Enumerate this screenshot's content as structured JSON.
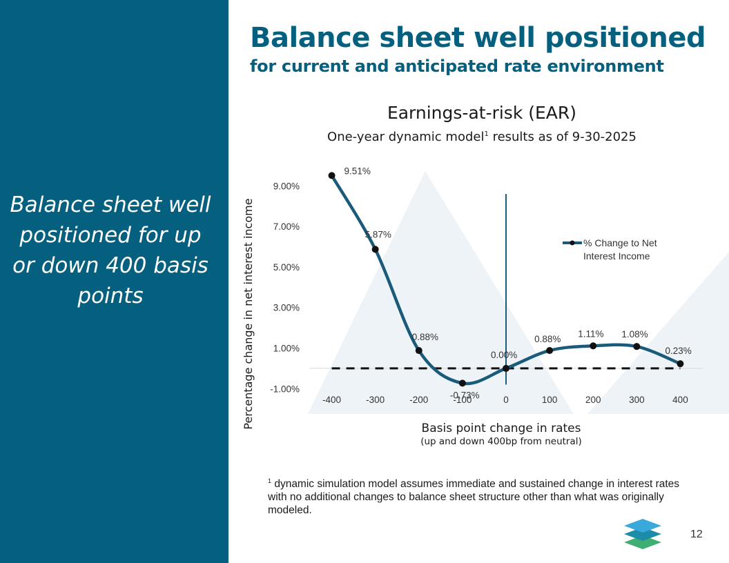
{
  "slide": {
    "title": "Balance sheet well positioned",
    "subtitle": "for current and anticipated rate environment",
    "sidebar_text": "Balance sheet well positioned for up or down 400 basis points",
    "footnote_marker": "1",
    "footnote": " dynamic simulation model assumes immediate and sustained change in interest rates with no additional changes to balance sheet structure other than what was originally modeled.",
    "page_number": "12",
    "colors": {
      "sidebar": "#05607f",
      "line": "#1a5a7a",
      "background_shape": "#eef3f7",
      "logo_top": "#39a9dc",
      "logo_mid": "#1d8ca8",
      "logo_bottom": "#3fae72"
    }
  },
  "chart_data": {
    "type": "line",
    "title": "Earnings-at-risk (EAR)",
    "subtitle_pre": "One-year dynamic model",
    "subtitle_sup": "1",
    "subtitle_post": " results as of 9-30-2025",
    "xlabel": "Basis point change in rates",
    "xlabel_sub": "(up and down 400bp from neutral)",
    "ylabel": "Percentage change in net interest income",
    "categories": [
      "-400",
      "-300",
      "-200",
      "-100",
      "0",
      "100",
      "200",
      "300",
      "400"
    ],
    "x": [
      -400,
      -300,
      -200,
      -100,
      0,
      100,
      200,
      300,
      400
    ],
    "series": [
      {
        "name": "% Change to Net Interest Income",
        "legend_lines": [
          "% Change to Net",
          "Interest Income"
        ],
        "values": [
          9.51,
          5.87,
          0.88,
          -0.73,
          0.0,
          0.88,
          1.11,
          1.08,
          0.23
        ],
        "labels": [
          "9.51%",
          "5.87%",
          "0.88%",
          "-0.73%",
          "0.00%",
          "0.88%",
          "1.11%",
          "1.08%",
          "0.23%"
        ]
      }
    ],
    "yticks": [
      -1,
      1,
      3,
      5,
      7,
      9
    ],
    "ytick_labels": [
      "-1.00%",
      "1.00%",
      "3.00%",
      "5.00%",
      "7.00%",
      "9.00%"
    ],
    "ylim": [
      -1.5,
      10
    ],
    "xlim": [
      -450,
      450
    ],
    "baseline": 0,
    "vertical_line_x": 0,
    "legend_position": "right"
  }
}
